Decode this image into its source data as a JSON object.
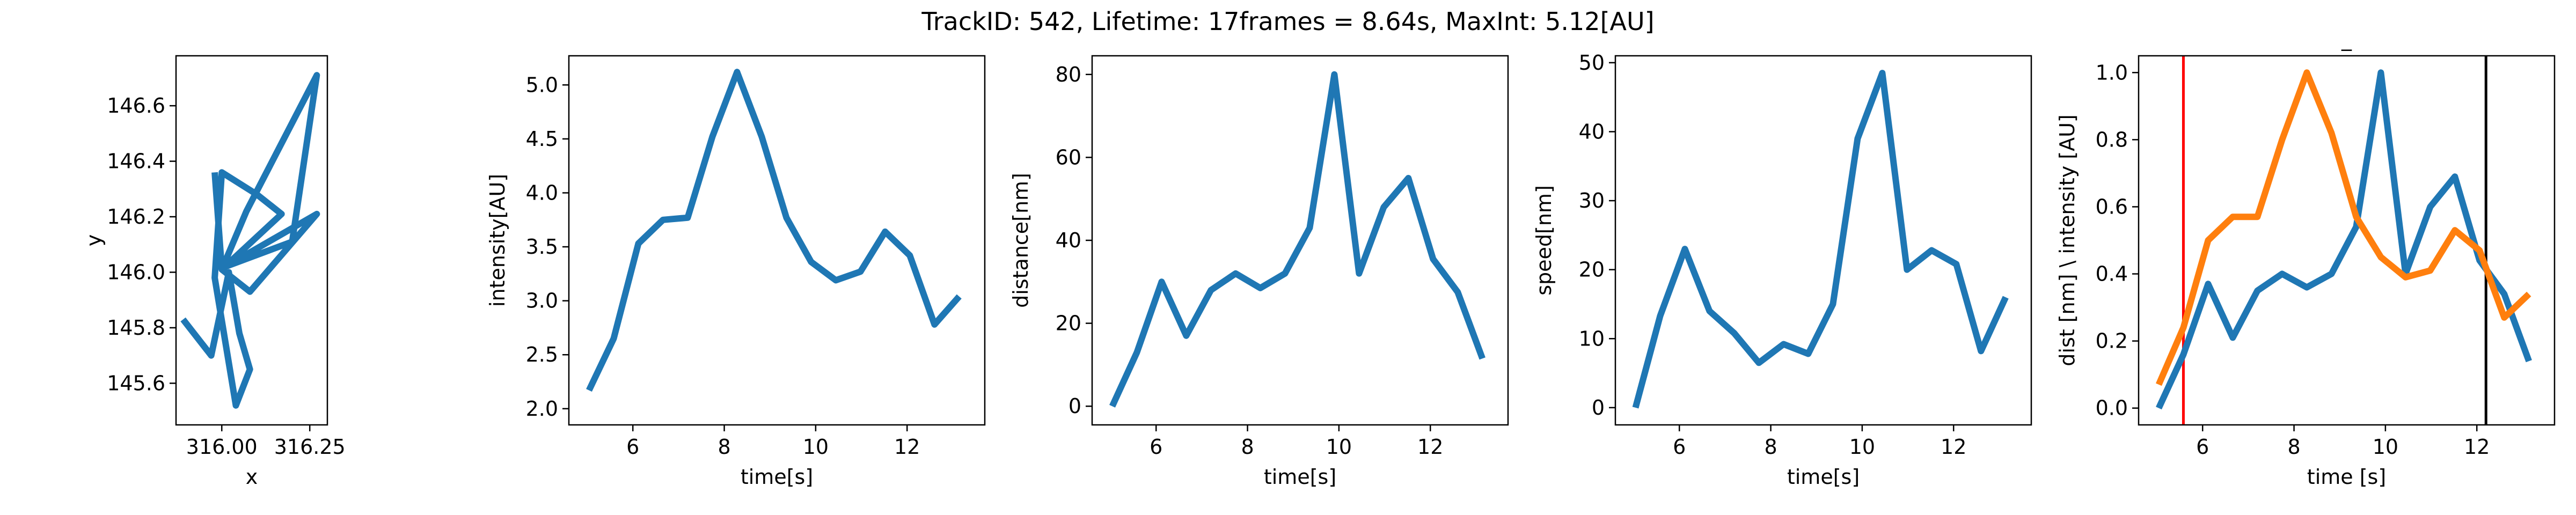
{
  "figure": {
    "title": "TrackID: 542, Lifetime: 17frames = 8.64s, MaxInt: 5.12[AU]"
  },
  "colors": {
    "blue": "#1f77b4",
    "orange": "#ff7f0e",
    "red": "#ff0000",
    "black": "#000000"
  },
  "chart_data": [
    {
      "type": "line",
      "title": "",
      "xlabel": "x",
      "ylabel": "y",
      "xlim": [
        315.87,
        316.3
      ],
      "ylim": [
        145.45,
        146.78
      ],
      "xticks": [
        316.0,
        316.25
      ],
      "xtick_labels": [
        "316.00",
        "316.25"
      ],
      "yticks": [
        145.6,
        145.8,
        146.0,
        146.2,
        146.4,
        146.6
      ],
      "ytick_labels": [
        "145.6",
        "145.8",
        "146.0",
        "146.2",
        "146.4",
        "146.6"
      ],
      "series": [
        {
          "color": "#1f77b4",
          "x": [
            315.89,
            315.97,
            316.02,
            316.05,
            316.08,
            316.04,
            315.98,
            316.0,
            316.1,
            316.17,
            316.0,
            316.07,
            316.27,
            316.2,
            316.01,
            316.27,
            316.08,
            316.0,
            315.98
          ],
          "y": [
            145.83,
            145.7,
            146.0,
            145.78,
            145.65,
            145.52,
            145.98,
            146.36,
            146.28,
            146.21,
            146.01,
            146.22,
            146.71,
            146.11,
            146.02,
            146.21,
            145.93,
            146.01,
            146.36
          ]
        }
      ]
    },
    {
      "type": "line",
      "title": "",
      "xlabel": "time[s]",
      "ylabel": "intensity[AU]",
      "xlim": [
        4.6,
        13.7
      ],
      "ylim": [
        1.85,
        5.27
      ],
      "xticks": [
        6,
        8,
        10,
        12
      ],
      "xtick_labels": [
        "6",
        "8",
        "10",
        "12"
      ],
      "yticks": [
        2.0,
        2.5,
        3.0,
        3.5,
        4.0,
        4.5,
        5.0
      ],
      "ytick_labels": [
        "2.0",
        "2.5",
        "3.0",
        "3.5",
        "4.0",
        "4.5",
        "5.0"
      ],
      "series": [
        {
          "color": "#1f77b4",
          "x": [
            5.04,
            5.58,
            6.12,
            6.66,
            7.2,
            7.74,
            8.28,
            8.82,
            9.36,
            9.9,
            10.44,
            10.98,
            11.52,
            12.06,
            12.6,
            13.14
          ],
          "y": [
            2.17,
            2.65,
            3.53,
            3.75,
            3.77,
            4.52,
            5.12,
            4.52,
            3.77,
            3.36,
            3.19,
            3.27,
            3.64,
            3.42,
            2.78,
            3.04
          ]
        }
      ]
    },
    {
      "type": "line",
      "title": "",
      "xlabel": "time[s]",
      "ylabel": "distance[nm]",
      "xlim": [
        4.6,
        13.7
      ],
      "ylim": [
        -4.5,
        84.5
      ],
      "xticks": [
        6,
        8,
        10,
        12
      ],
      "xtick_labels": [
        "6",
        "8",
        "10",
        "12"
      ],
      "yticks": [
        0,
        20,
        40,
        60,
        80
      ],
      "ytick_labels": [
        "0",
        "20",
        "40",
        "60",
        "80"
      ],
      "series": [
        {
          "color": "#1f77b4",
          "x": [
            5.04,
            5.58,
            6.12,
            6.66,
            7.2,
            7.74,
            8.28,
            8.82,
            9.36,
            9.9,
            10.44,
            10.98,
            11.52,
            12.06,
            12.6,
            13.14
          ],
          "y": [
            0,
            13,
            30,
            17,
            28,
            32,
            28.5,
            32,
            43,
            80,
            32,
            48,
            55,
            35.5,
            27.5,
            11.5
          ]
        }
      ]
    },
    {
      "type": "line",
      "title": "",
      "xlabel": "time[s]",
      "ylabel": "speed[nm]",
      "xlim": [
        4.6,
        13.7
      ],
      "ylim": [
        -2.5,
        51
      ],
      "xticks": [
        6,
        8,
        10,
        12
      ],
      "xtick_labels": [
        "6",
        "8",
        "10",
        "12"
      ],
      "yticks": [
        0,
        10,
        20,
        30,
        40,
        50
      ],
      "ytick_labels": [
        "0",
        "10",
        "20",
        "30",
        "40",
        "50"
      ],
      "series": [
        {
          "color": "#1f77b4",
          "x": [
            5.04,
            5.58,
            6.12,
            6.66,
            7.2,
            7.74,
            8.28,
            8.82,
            9.36,
            9.9,
            10.44,
            10.98,
            11.52,
            12.06,
            12.6,
            13.14
          ],
          "y": [
            0,
            13.3,
            23,
            14,
            10.8,
            6.5,
            9.2,
            7.8,
            15,
            39,
            48.5,
            20,
            22.8,
            20.8,
            8.2,
            16
          ]
        }
      ]
    },
    {
      "type": "line",
      "title": "_",
      "xlabel": "time [s]",
      "ylabel": "dist [nm] \\ intensity [AU]",
      "xlim": [
        4.6,
        13.7
      ],
      "ylim": [
        -0.05,
        1.05
      ],
      "xticks": [
        6,
        8,
        10,
        12
      ],
      "xtick_labels": [
        "6",
        "8",
        "10",
        "12"
      ],
      "yticks": [
        0.0,
        0.2,
        0.4,
        0.6,
        0.8,
        1.0
      ],
      "ytick_labels": [
        "0.0",
        "0.2",
        "0.4",
        "0.6",
        "0.8",
        "1.0"
      ],
      "vlines": [
        {
          "x": 5.58,
          "color": "#ff0000"
        },
        {
          "x": 12.2,
          "color": "#000000"
        }
      ],
      "series": [
        {
          "color": "#1f77b4",
          "x": [
            5.04,
            5.58,
            6.12,
            6.66,
            7.2,
            7.74,
            8.28,
            8.82,
            9.36,
            9.9,
            10.44,
            10.98,
            11.52,
            12.06,
            12.6,
            13.14
          ],
          "y": [
            0.0,
            0.16,
            0.37,
            0.21,
            0.35,
            0.4,
            0.36,
            0.4,
            0.54,
            1.0,
            0.4,
            0.6,
            0.69,
            0.44,
            0.34,
            0.14
          ]
        },
        {
          "color": "#ff7f0e",
          "x": [
            5.04,
            5.58,
            6.12,
            6.66,
            7.2,
            7.74,
            8.28,
            8.82,
            9.36,
            9.9,
            10.44,
            10.98,
            11.52,
            12.06,
            12.6,
            13.14
          ],
          "y": [
            0.07,
            0.24,
            0.5,
            0.57,
            0.57,
            0.8,
            1.0,
            0.82,
            0.57,
            0.45,
            0.39,
            0.41,
            0.53,
            0.47,
            0.27,
            0.34
          ]
        }
      ]
    }
  ]
}
